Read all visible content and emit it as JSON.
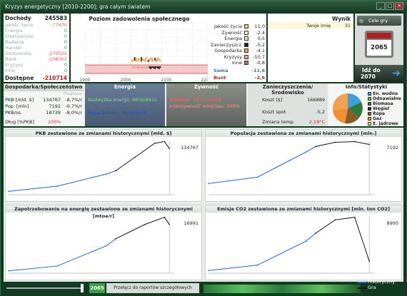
{
  "window": {
    "title": "Kryzys energetyczny [2010-2200]; gra całym światem"
  },
  "incomes": {
    "header_label": "Dochody",
    "header_value": "245583",
    "rows": [
      {
        "label": "Jakość życia",
        "value": "-77470"
      },
      {
        "label": "Energia",
        "value": "0"
      },
      {
        "label": "Efektywność",
        "value": "0"
      },
      {
        "label": "Badania",
        "value": "0"
      },
      {
        "label": "Handel",
        "value": "0"
      },
      {
        "label": "Środowisko",
        "value": "-170525"
      },
      {
        "label": "Bank",
        "value": "-208302"
      },
      {
        "label": "Kryzysy",
        "value": "0"
      },
      {
        "label": "Inne",
        "value": "0"
      }
    ],
    "available_label": "Dostępne",
    "available_value": "-210714"
  },
  "satisfaction": {
    "title": "Poziom zadowolenia społecznego",
    "x_ticks": [
      "1900",
      "2000",
      "2100",
      "2200"
    ],
    "legend": [
      {
        "label": "Jakość życia",
        "value": "11,0",
        "color": "#f0d060"
      },
      {
        "label": "Żywność",
        "value": "-2,4",
        "color": "#f8f0c0"
      },
      {
        "label": "Energia",
        "value": "0,5",
        "color": "#f0e8a0"
      },
      {
        "label": "Zanieczyszcz.",
        "value": "-5,2",
        "color": "#222222"
      },
      {
        "label": "Gospodarka",
        "value": "-4,1",
        "color": "#f0a030"
      },
      {
        "label": "Kryzysy",
        "value": "-10,7",
        "color": "#f0a0a0"
      },
      {
        "label": "Inne",
        "value": "-0,8",
        "color": "#888888"
      }
    ],
    "sum_label": "Suma",
    "sum_value": "-11,6",
    "bunt_label": "Bunt",
    "bunt_value": "-2,6"
  },
  "result": {
    "title": "Wynik",
    "player_label": "Twoje imię",
    "player_value": "31"
  },
  "side": {
    "goals_label": "Cele gry",
    "year": "2065",
    "goto_label": "Idź do",
    "goto_year": "2070"
  },
  "sections": {
    "economy": {
      "title": "Gospodarka/Społeczeństwo",
      "progress_label": "Prognoza",
      "rows": [
        {
          "label": "PKB [mld. $]",
          "value": "134767",
          "pct": "-8,7%/r"
        },
        {
          "label": "Pop. [mln]",
          "value": "7192",
          "pct": "-0,7%/r"
        },
        {
          "label": "PKB/os.",
          "value": "18739",
          "pct": "-8,0%/r"
        }
      ],
      "debt_label": "Dług [%PKB]",
      "debt_value": "200%"
    },
    "energy": {
      "title": "Energia",
      "surplus": "Nadwyżka energii: 9858/8915",
      "oil": "Ropa zbilans.: 8076/8076"
    },
    "food": {
      "title": "Żywność",
      "shortage": "Niedobór: 7671/14924",
      "intensity": "Intensywność rolnictwa: 200%"
    },
    "pollution": {
      "title": "Zanieczyszczenia/Środowisko",
      "cost_label": "Koszt [$]",
      "cost_value": "166889",
      "social_label": "Koszt społ.",
      "social_value": "-5,2",
      "temp_label": "Zmiana temp.",
      "temp_value": "2,19°C"
    },
    "info": {
      "title": "Info/Statystyki",
      "legend": [
        {
          "label": "En. wodna",
          "color": "#3aa0e0"
        },
        {
          "label": "Odnawialne",
          "color": "#60c060"
        },
        {
          "label": "Biomasa",
          "color": "#2e7a3a"
        },
        {
          "label": "Węgiel",
          "color": "#222222"
        },
        {
          "label": "Ropa",
          "color": "#8a5a2a"
        },
        {
          "label": "Gaz",
          "color": "#f09030"
        },
        {
          "label": "E. jądrowe",
          "color": "#f0e060"
        }
      ]
    }
  },
  "charts": [
    {
      "title": "PKB zestawione ze zmianami historycznymi [mld. $]",
      "value": "134767"
    },
    {
      "title": "Populacja zestawiona ze zmianami historycznymi [mln.]",
      "value": "7192"
    },
    {
      "title": "Zapotrzebowanie na energię zestawione ze zmianami historycznymi [mtoe/r]",
      "value": "16991"
    },
    {
      "title": "Emisje CO2 zestawione ze zmianami historycznymi [mln. ton CO2]",
      "value": "8995"
    }
  ],
  "footer": {
    "year": "2065",
    "switch_label": "Przełącz do raportów szczegółowych",
    "legend_historical": "Historyczny",
    "legend_game": "Gra"
  },
  "chart_data": [
    {
      "type": "line",
      "title": "PKB zestawione ze zmianami historycznymi [mld. $]",
      "series": [
        {
          "name": "Historyczny",
          "x": [
            1900,
            1950,
            2000,
            2010
          ],
          "values": [
            10000,
            25000,
            60000,
            70000
          ]
        },
        {
          "name": "Gra",
          "x": [
            2010,
            2030,
            2050,
            2060,
            2065
          ],
          "values": [
            70000,
            110000,
            150000,
            155000,
            134767
          ]
        }
      ]
    },
    {
      "type": "line",
      "title": "Populacja zestawiona ze zmianami historycznymi [mln.]",
      "series": [
        {
          "name": "Historyczny",
          "x": [
            1900,
            1950,
            2000,
            2010
          ],
          "values": [
            1600,
            2500,
            6100,
            6900
          ]
        },
        {
          "name": "Gra",
          "x": [
            2010,
            2030,
            2050,
            2065
          ],
          "values": [
            6900,
            7500,
            7600,
            7192
          ]
        }
      ]
    },
    {
      "type": "line",
      "title": "Zapotrzebowanie na energię zestawione ze zmianami historycznymi [mtoe/r]",
      "series": [
        {
          "name": "Historyczny",
          "x": [
            1900,
            1950,
            2000,
            2010
          ],
          "values": [
            800,
            2500,
            9500,
            12000
          ]
        },
        {
          "name": "Gra",
          "x": [
            2010,
            2040,
            2060,
            2065
          ],
          "values": [
            12000,
            17000,
            19500,
            16991
          ]
        }
      ]
    },
    {
      "type": "line",
      "title": "Emisje CO2 zestawione ze zmianami historycznymi [mln. ton CO2]",
      "series": [
        {
          "name": "Historyczny",
          "x": [
            1900,
            1950,
            2000,
            2010
          ],
          "values": [
            2000,
            6000,
            24000,
            30000
          ]
        },
        {
          "name": "Gra",
          "x": [
            2010,
            2030,
            2050,
            2065
          ],
          "values": [
            30000,
            40000,
            42000,
            8995
          ]
        }
      ]
    }
  ]
}
